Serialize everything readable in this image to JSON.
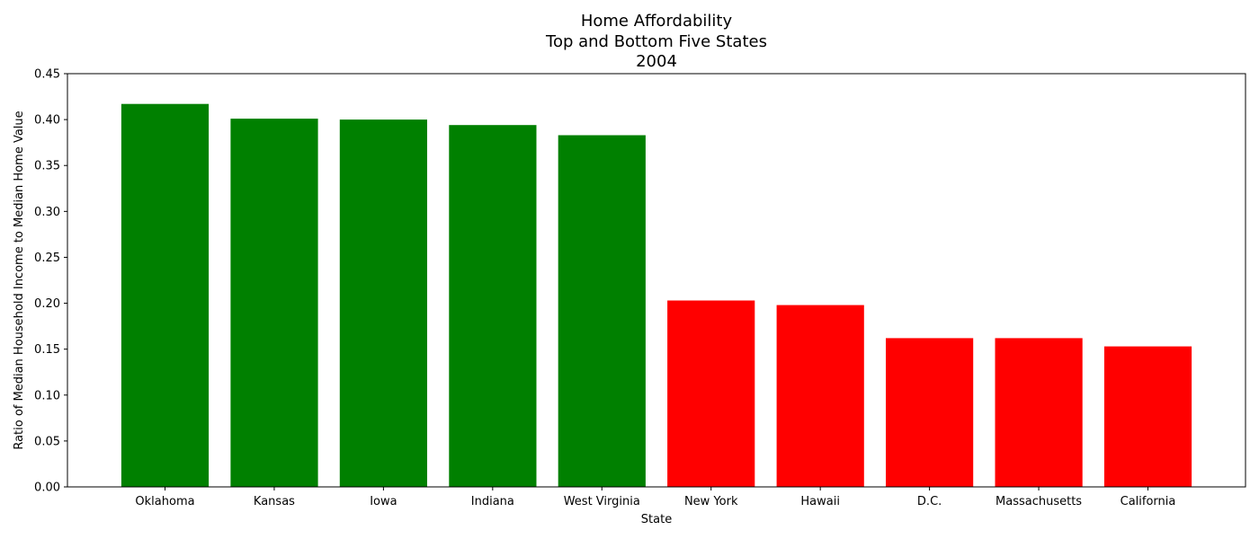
{
  "chart_data": {
    "type": "bar",
    "title_lines": [
      "Home Affordability",
      "Top and Bottom Five States",
      "2004"
    ],
    "xlabel": "State",
    "ylabel": "Ratio of Median Household Income to Median Home Value",
    "categories": [
      "Oklahoma",
      "Kansas",
      "Iowa",
      "Indiana",
      "West Virginia",
      "New York",
      "Hawaii",
      "D.C.",
      "Massachusetts",
      "California"
    ],
    "values": [
      0.417,
      0.401,
      0.4,
      0.394,
      0.383,
      0.203,
      0.198,
      0.162,
      0.162,
      0.153
    ],
    "colors": [
      "#008000",
      "#008000",
      "#008000",
      "#008000",
      "#008000",
      "#ff0000",
      "#ff0000",
      "#ff0000",
      "#ff0000",
      "#ff0000"
    ],
    "ylim": [
      0,
      0.45
    ],
    "yticks": [
      "0.00",
      "0.05",
      "0.10",
      "0.15",
      "0.20",
      "0.25",
      "0.30",
      "0.35",
      "0.40",
      "0.45"
    ],
    "grid": false,
    "legend": "none"
  }
}
